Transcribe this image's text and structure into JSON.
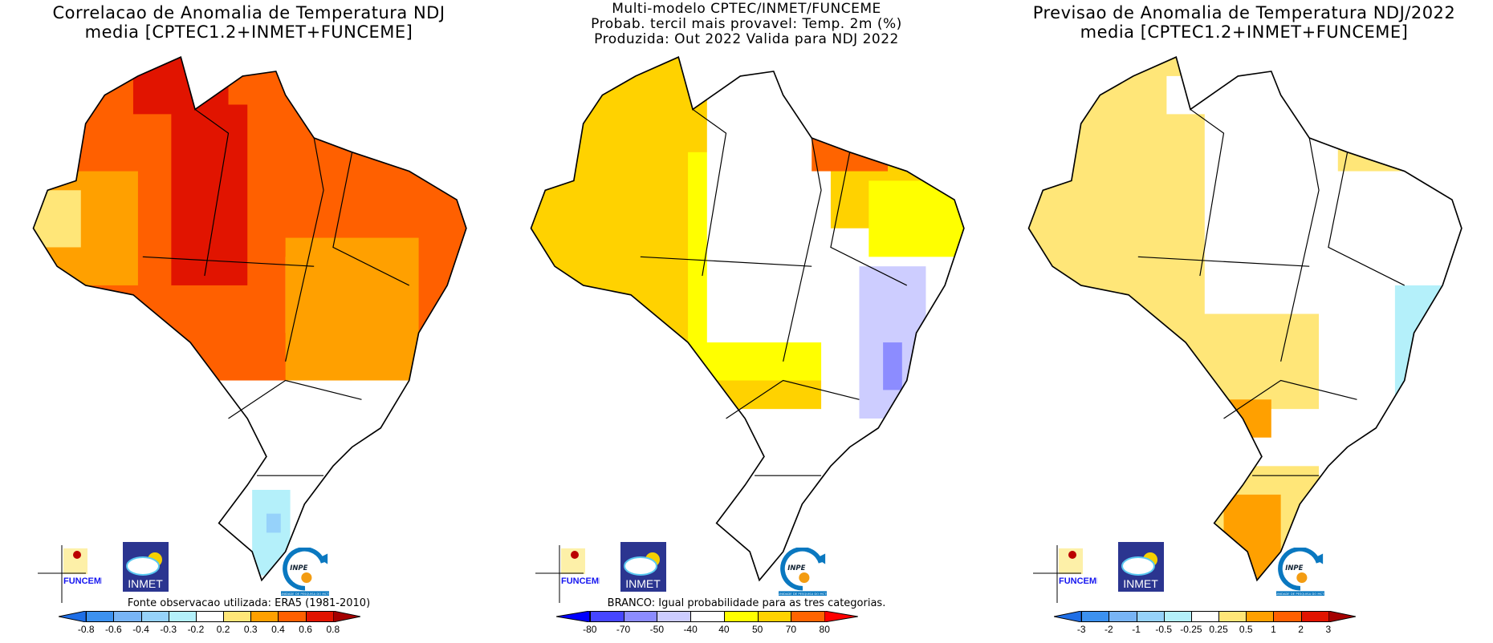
{
  "panels": [
    {
      "title_lines": [
        "Correlacao de Anomalia de Temperatura NDJ",
        "media [CPTEC1.2+INMET+FUNCEME]"
      ],
      "note": "Fonte observacao utilizada: ERA5 (1981-2010)",
      "colorbar": {
        "labels": [
          "-0.8",
          "-0.6",
          "-0.4",
          "-0.3",
          "-0.2",
          "0.2",
          "0.3",
          "0.4",
          "0.6",
          "0.8"
        ],
        "colors": [
          "#1e6ee6",
          "#3c91f0",
          "#78b4f5",
          "#96d2fa",
          "#b4f0fa",
          "#ffffff",
          "#ffe678",
          "#ffa000",
          "#ff6000",
          "#e11400",
          "#a50000"
        ]
      }
    },
    {
      "title_lines": [
        "Multi-modelo CPTEC/INMET/FUNCEME",
        "Probab. tercil mais provavel: Temp. 2m (%)",
        "Produzida: Out 2022  Valida para NDJ 2022"
      ],
      "note": "BRANCO: Igual probabilidade para as tres categorias.",
      "colorbar": {
        "labels": [
          "-80",
          "-70",
          "-50",
          "-40",
          "40",
          "50",
          "70",
          "80"
        ],
        "colors": [
          "#0000ff",
          "#4646ff",
          "#8c8cff",
          "#cdcdff",
          "#ffffff",
          "#ffff00",
          "#ffd200",
          "#ff6400",
          "#ff0000"
        ]
      }
    },
    {
      "title_lines": [
        "Previsao de Anomalia de Temperatura NDJ/2022",
        "media [CPTEC1.2+INMET+FUNCEME]"
      ],
      "note": "",
      "colorbar": {
        "labels": [
          "-3",
          "-2",
          "-1",
          "-0.5",
          "-0.25",
          "0.25",
          "0.5",
          "1",
          "2",
          "3"
        ],
        "colors": [
          "#1e6ee6",
          "#3c91f0",
          "#78b4f5",
          "#96d2fa",
          "#b4f0fa",
          "#ffffff",
          "#ffe678",
          "#ffa000",
          "#ff6000",
          "#e11400",
          "#a50000"
        ]
      }
    }
  ],
  "logos": {
    "funceme": "FUNCEME",
    "inmet": "INMET",
    "inpe": "INPE",
    "inpe_sub": "UNIDADE DE PESQUISA DO MCTI"
  }
}
